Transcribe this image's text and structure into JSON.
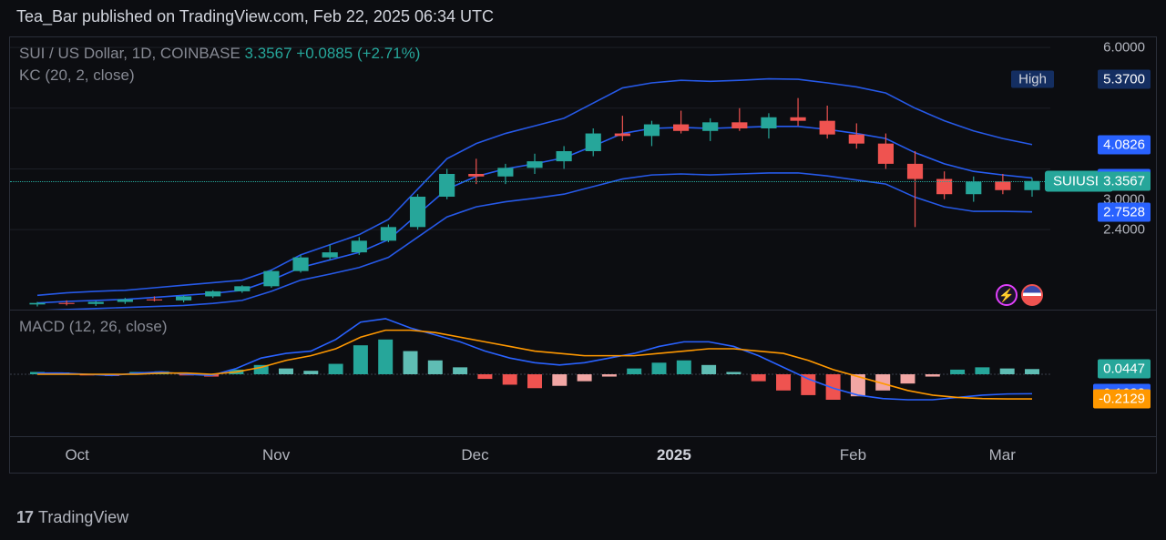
{
  "header": {
    "text": "Tea_Bar published on TradingView.com, Feb 22, 2025 06:34 UTC"
  },
  "main": {
    "title": "SUI / US Dollar, 1D, COINBASE",
    "last": "3.3567",
    "change": "+0.0885",
    "change_pct": "(+2.71%)",
    "indicator": "KC (20, 2, close)",
    "ticker_badge": "SUIUSD",
    "high_label": "High",
    "price_range": {
      "min": 0.8,
      "max": 6.2
    },
    "yaxis": {
      "ticks": [
        {
          "v": 6.0,
          "label": "6.0000"
        },
        {
          "v": 2.4,
          "label": "2.4000"
        }
      ],
      "boxed": [
        {
          "v": 5.37,
          "label": "5.3700",
          "bg": "#142e61"
        },
        {
          "v": 4.0826,
          "label": "4.0826",
          "bg": "#2962ff"
        },
        {
          "v": 3.4177,
          "label": "3.4177",
          "bg": "#2962ff"
        },
        {
          "v": 3.3567,
          "label": "3.3567",
          "bg": "#26a69a"
        },
        {
          "v": 3.0,
          "label": "3.0000",
          "bg": null
        },
        {
          "v": 2.7528,
          "label": "2.7528",
          "bg": "#2962ff"
        }
      ]
    },
    "kc": {
      "upper": [
        1.1,
        1.15,
        1.18,
        1.2,
        1.25,
        1.3,
        1.35,
        1.4,
        1.6,
        1.9,
        2.1,
        2.3,
        2.6,
        3.2,
        3.8,
        4.1,
        4.3,
        4.45,
        4.6,
        4.9,
        5.2,
        5.3,
        5.35,
        5.33,
        5.35,
        5.38,
        5.37,
        5.3,
        5.22,
        5.1,
        4.8,
        4.55,
        4.35,
        4.2,
        4.08
      ],
      "mid": [
        0.95,
        0.98,
        1.0,
        1.02,
        1.06,
        1.1,
        1.14,
        1.2,
        1.4,
        1.65,
        1.8,
        1.95,
        2.2,
        2.7,
        3.2,
        3.45,
        3.6,
        3.7,
        3.82,
        4.05,
        4.3,
        4.4,
        4.42,
        4.4,
        4.42,
        4.44,
        4.44,
        4.38,
        4.3,
        4.2,
        3.92,
        3.7,
        3.55,
        3.48,
        3.42
      ],
      "lower": [
        0.8,
        0.82,
        0.84,
        0.86,
        0.88,
        0.9,
        0.94,
        1.0,
        1.18,
        1.4,
        1.52,
        1.65,
        1.85,
        2.25,
        2.65,
        2.85,
        2.95,
        3.02,
        3.1,
        3.25,
        3.4,
        3.48,
        3.5,
        3.48,
        3.5,
        3.52,
        3.52,
        3.46,
        3.38,
        3.3,
        3.04,
        2.85,
        2.76,
        2.76,
        2.75
      ],
      "color": "#2962ff"
    },
    "candles": {
      "up_color": "#26a69a",
      "down_color": "#ef5350",
      "data": [
        {
          "o": 0.92,
          "h": 0.97,
          "l": 0.88,
          "c": 0.95
        },
        {
          "o": 0.95,
          "h": 1.0,
          "l": 0.9,
          "c": 0.93
        },
        {
          "o": 0.93,
          "h": 0.99,
          "l": 0.89,
          "c": 0.97
        },
        {
          "o": 0.97,
          "h": 1.05,
          "l": 0.93,
          "c": 1.02
        },
        {
          "o": 1.02,
          "h": 1.08,
          "l": 0.98,
          "c": 1.0
        },
        {
          "o": 1.0,
          "h": 1.1,
          "l": 0.96,
          "c": 1.08
        },
        {
          "o": 1.08,
          "h": 1.2,
          "l": 1.05,
          "c": 1.18
        },
        {
          "o": 1.18,
          "h": 1.3,
          "l": 1.15,
          "c": 1.28
        },
        {
          "o": 1.28,
          "h": 1.6,
          "l": 1.25,
          "c": 1.58
        },
        {
          "o": 1.58,
          "h": 1.9,
          "l": 1.55,
          "c": 1.85
        },
        {
          "o": 1.85,
          "h": 2.1,
          "l": 1.8,
          "c": 1.95
        },
        {
          "o": 1.95,
          "h": 2.25,
          "l": 1.9,
          "c": 2.18
        },
        {
          "o": 2.18,
          "h": 2.5,
          "l": 2.15,
          "c": 2.45
        },
        {
          "o": 2.45,
          "h": 3.1,
          "l": 2.4,
          "c": 3.05
        },
        {
          "o": 3.05,
          "h": 3.6,
          "l": 3.0,
          "c": 3.5
        },
        {
          "o": 3.5,
          "h": 3.8,
          "l": 3.3,
          "c": 3.45
        },
        {
          "o": 3.45,
          "h": 3.7,
          "l": 3.3,
          "c": 3.62
        },
        {
          "o": 3.62,
          "h": 3.9,
          "l": 3.5,
          "c": 3.75
        },
        {
          "o": 3.75,
          "h": 4.05,
          "l": 3.6,
          "c": 3.95
        },
        {
          "o": 3.95,
          "h": 4.4,
          "l": 3.85,
          "c": 4.3
        },
        {
          "o": 4.3,
          "h": 4.65,
          "l": 4.15,
          "c": 4.25
        },
        {
          "o": 4.25,
          "h": 4.55,
          "l": 4.05,
          "c": 4.48
        },
        {
          "o": 4.48,
          "h": 4.75,
          "l": 4.3,
          "c": 4.35
        },
        {
          "o": 4.35,
          "h": 4.6,
          "l": 4.15,
          "c": 4.52
        },
        {
          "o": 4.52,
          "h": 4.8,
          "l": 4.35,
          "c": 4.4
        },
        {
          "o": 4.4,
          "h": 4.7,
          "l": 4.2,
          "c": 4.62
        },
        {
          "o": 4.62,
          "h": 5.0,
          "l": 4.45,
          "c": 4.55
        },
        {
          "o": 4.55,
          "h": 4.85,
          "l": 4.2,
          "c": 4.28
        },
        {
          "o": 4.28,
          "h": 4.5,
          "l": 4.0,
          "c": 4.1
        },
        {
          "o": 4.1,
          "h": 4.3,
          "l": 3.6,
          "c": 3.7
        },
        {
          "o": 3.7,
          "h": 3.95,
          "l": 2.45,
          "c": 3.4
        },
        {
          "o": 3.4,
          "h": 3.55,
          "l": 3.0,
          "c": 3.1
        },
        {
          "o": 3.1,
          "h": 3.45,
          "l": 2.95,
          "c": 3.35
        },
        {
          "o": 3.35,
          "h": 3.5,
          "l": 3.1,
          "c": 3.18
        },
        {
          "o": 3.18,
          "h": 3.42,
          "l": 3.05,
          "c": 3.36
        }
      ]
    }
  },
  "macd": {
    "title": "MACD (12, 26, close)",
    "range": {
      "min": -0.55,
      "max": 0.55
    },
    "boxed": [
      {
        "v": 0.0447,
        "label": "0.0447",
        "bg": "#26a69a"
      },
      {
        "v": -0.1682,
        "label": "-0.1682",
        "bg": "#2962ff"
      },
      {
        "v": -0.2129,
        "label": "-0.2129",
        "bg": "#ff9800"
      }
    ],
    "hist": [
      0.02,
      0.015,
      -0.01,
      -0.015,
      0.02,
      0.025,
      -0.01,
      -0.02,
      0.04,
      0.08,
      0.05,
      0.03,
      0.09,
      0.25,
      0.3,
      0.2,
      0.12,
      0.06,
      -0.04,
      -0.09,
      -0.12,
      -0.1,
      -0.06,
      -0.02,
      0.05,
      0.1,
      0.12,
      0.08,
      0.02,
      -0.06,
      -0.14,
      -0.18,
      -0.22,
      -0.19,
      -0.14,
      -0.08,
      -0.02,
      0.04,
      0.06,
      0.05,
      0.045
    ],
    "macd_line": [
      0.01,
      0.01,
      0.0,
      -0.01,
      0.01,
      0.02,
      0.0,
      -0.01,
      0.05,
      0.14,
      0.18,
      0.2,
      0.3,
      0.45,
      0.48,
      0.4,
      0.34,
      0.28,
      0.2,
      0.14,
      0.1,
      0.08,
      0.1,
      0.14,
      0.18,
      0.24,
      0.28,
      0.28,
      0.24,
      0.16,
      0.06,
      -0.04,
      -0.12,
      -0.18,
      -0.21,
      -0.22,
      -0.22,
      -0.2,
      -0.18,
      -0.17,
      -0.168
    ],
    "signal_line": [
      0.0,
      0.0,
      0.0,
      0.0,
      0.0,
      0.01,
      0.01,
      0.0,
      0.02,
      0.06,
      0.12,
      0.16,
      0.22,
      0.32,
      0.38,
      0.38,
      0.36,
      0.32,
      0.28,
      0.24,
      0.2,
      0.18,
      0.16,
      0.16,
      0.16,
      0.18,
      0.2,
      0.22,
      0.22,
      0.2,
      0.18,
      0.12,
      0.04,
      -0.02,
      -0.08,
      -0.14,
      -0.18,
      -0.2,
      -0.21,
      -0.213,
      -0.213
    ],
    "macd_color": "#2962ff",
    "signal_color": "#ff9800",
    "hist_pos": "#26a69a",
    "hist_pos_light": "#5fbdb4",
    "hist_neg": "#ef5350",
    "hist_neg_light": "#f2a6a4"
  },
  "xaxis": {
    "labels": [
      {
        "t": 0.04,
        "text": "Oct"
      },
      {
        "t": 0.24,
        "text": "Nov"
      },
      {
        "t": 0.44,
        "text": "Dec"
      },
      {
        "t": 0.64,
        "text": "2025",
        "bold": true
      },
      {
        "t": 0.82,
        "text": "Feb"
      },
      {
        "t": 0.97,
        "text": "Mar"
      }
    ]
  },
  "footer": {
    "brand": "TradingView"
  },
  "colors": {
    "bg": "#0c0d11",
    "grid": "#2a2e39",
    "text": "#b2b5be"
  }
}
